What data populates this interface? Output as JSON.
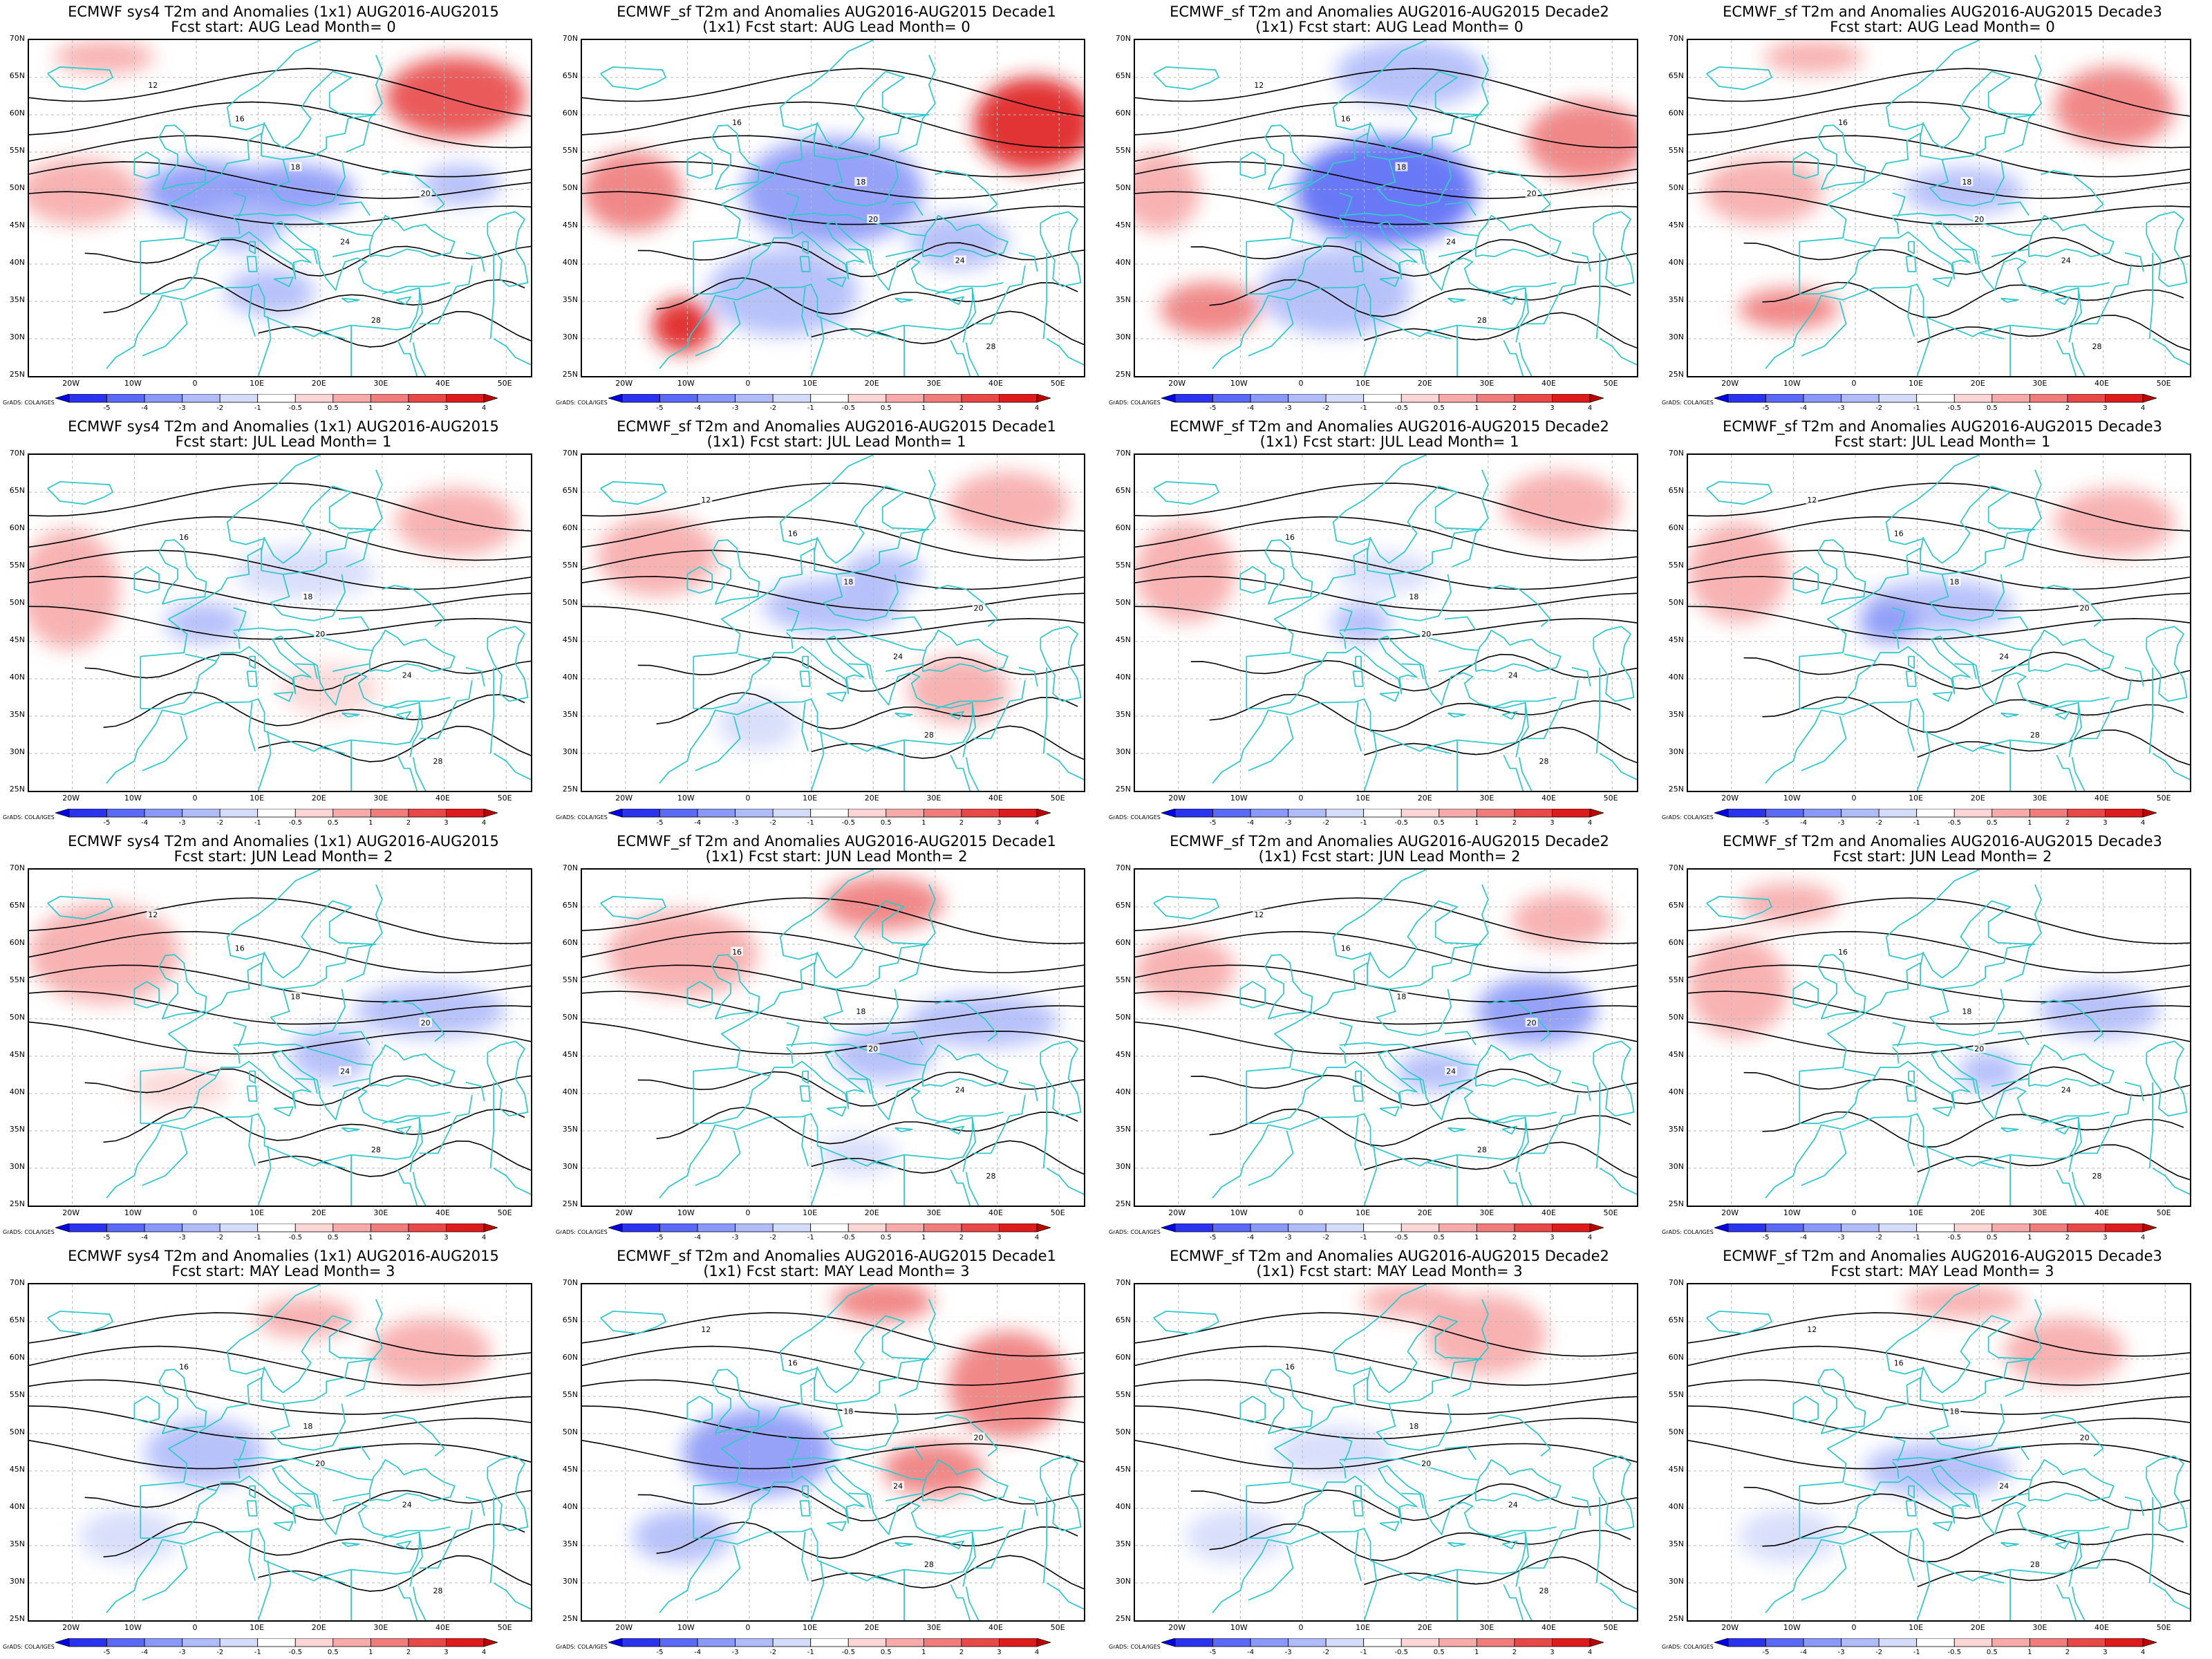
{
  "panel_grid": [
    [
      {
        "title": "ECMWF sys4 T2m and Anomalies (1x1) AUG2016-AUG2015",
        "subtitle": "Fcst start: AUG  Lead Month= 0",
        "blobs": [
          [
            0.35,
            0.45,
            0.12,
            0.09,
            -2.0
          ],
          [
            0.52,
            0.45,
            0.13,
            0.08,
            -2.0
          ],
          [
            0.43,
            0.55,
            0.08,
            0.08,
            -1.0
          ],
          [
            0.48,
            0.75,
            0.09,
            0.07,
            -1.0
          ],
          [
            0.85,
            0.17,
            0.14,
            0.12,
            3.0
          ],
          [
            0.86,
            0.43,
            0.08,
            0.06,
            -1.0
          ],
          [
            0.1,
            0.45,
            0.12,
            0.1,
            1.0
          ],
          [
            0.15,
            0.05,
            0.1,
            0.05,
            1.0
          ]
        ]
      },
      {
        "title": "ECMWF_sf T2m and Anomalies AUG2016-AUG2015 Decade1",
        "subtitle": "(1x1) Fcst start: AUG  Lead Month= 0",
        "blobs": [
          [
            0.5,
            0.45,
            0.18,
            0.16,
            -2.5
          ],
          [
            0.4,
            0.75,
            0.15,
            0.13,
            -1.0
          ],
          [
            0.75,
            0.6,
            0.1,
            0.08,
            -1.0
          ],
          [
            0.9,
            0.25,
            0.12,
            0.14,
            4.0
          ],
          [
            0.1,
            0.45,
            0.1,
            0.12,
            2.0
          ],
          [
            0.2,
            0.85,
            0.06,
            0.08,
            4.0
          ]
        ]
      },
      {
        "title": "ECMWF_sf T2m and Anomalies AUG2016-AUG2015 Decade2",
        "subtitle": "(1x1) Fcst start: AUG  Lead Month= 0",
        "blobs": [
          [
            0.5,
            0.45,
            0.18,
            0.16,
            -3.0
          ],
          [
            0.4,
            0.75,
            0.15,
            0.13,
            -1.0
          ],
          [
            0.55,
            0.1,
            0.15,
            0.1,
            -1.0
          ],
          [
            0.15,
            0.8,
            0.1,
            0.08,
            2.0
          ],
          [
            0.9,
            0.3,
            0.12,
            0.12,
            2.0
          ],
          [
            0.05,
            0.45,
            0.08,
            0.12,
            1.0
          ]
        ]
      },
      {
        "title": "ECMWF_sf T2m and Anomalies AUG2016-AUG2015 Decade3",
        "subtitle": "Fcst start: AUG  Lead Month= 0",
        "blobs": [
          [
            0.15,
            0.45,
            0.12,
            0.1,
            1.0
          ],
          [
            0.85,
            0.2,
            0.12,
            0.12,
            2.0
          ],
          [
            0.2,
            0.8,
            0.1,
            0.06,
            2.0
          ],
          [
            0.55,
            0.45,
            0.12,
            0.07,
            -1.0
          ],
          [
            0.25,
            0.05,
            0.1,
            0.05,
            1.0
          ]
        ]
      }
    ],
    [
      {
        "title": "ECMWF sys4 T2m and Anomalies (1x1) AUG2016-AUG2015",
        "subtitle": "Fcst start: JUL  Lead Month= 1",
        "blobs": [
          [
            0.08,
            0.4,
            0.1,
            0.18,
            1.0
          ],
          [
            0.55,
            0.35,
            0.14,
            0.08,
            -0.5
          ],
          [
            0.35,
            0.5,
            0.08,
            0.06,
            -1.0
          ],
          [
            0.6,
            0.7,
            0.1,
            0.08,
            0.5
          ],
          [
            0.85,
            0.2,
            0.12,
            0.1,
            1.0
          ]
        ]
      },
      {
        "title": "ECMWF_sf T2m and Anomalies AUG2016-AUG2015 Decade1",
        "subtitle": "(1x1) Fcst start: JUL  Lead Month= 1",
        "blobs": [
          [
            0.15,
            0.3,
            0.12,
            0.12,
            1.0
          ],
          [
            0.5,
            0.45,
            0.14,
            0.08,
            -1.0
          ],
          [
            0.6,
            0.35,
            0.08,
            0.06,
            -1.0
          ],
          [
            0.75,
            0.7,
            0.1,
            0.1,
            1.0
          ],
          [
            0.85,
            0.15,
            0.12,
            0.1,
            1.0
          ],
          [
            0.35,
            0.8,
            0.08,
            0.08,
            -0.5
          ]
        ]
      },
      {
        "title": "ECMWF_sf T2m and Anomalies AUG2016-AUG2015 Decade2",
        "subtitle": "(1x1) Fcst start: JUL  Lead Month= 1",
        "blobs": [
          [
            0.1,
            0.35,
            0.1,
            0.15,
            1.0
          ],
          [
            0.5,
            0.35,
            0.1,
            0.06,
            -0.5
          ],
          [
            0.45,
            0.5,
            0.06,
            0.06,
            -1.0
          ],
          [
            0.85,
            0.15,
            0.12,
            0.1,
            1.0
          ]
        ]
      },
      {
        "title": "ECMWF_sf T2m and Anomalies AUG2016-AUG2015 Decade3",
        "subtitle": "Fcst start: JUL  Lead Month= 1",
        "blobs": [
          [
            0.1,
            0.35,
            0.1,
            0.15,
            1.0
          ],
          [
            0.5,
            0.45,
            0.15,
            0.08,
            -1.0
          ],
          [
            0.4,
            0.5,
            0.06,
            0.06,
            -2.0
          ],
          [
            0.85,
            0.2,
            0.12,
            0.1,
            1.0
          ]
        ]
      }
    ],
    [
      {
        "title": "ECMWF sys4 T2m and Anomalies (1x1) AUG2016-AUG2015",
        "subtitle": "Fcst start: JUN  Lead Month= 2",
        "blobs": [
          [
            0.15,
            0.25,
            0.15,
            0.15,
            1.0
          ],
          [
            0.8,
            0.42,
            0.15,
            0.08,
            -1.0
          ],
          [
            0.6,
            0.55,
            0.08,
            0.08,
            -1.0
          ],
          [
            0.3,
            0.65,
            0.1,
            0.06,
            0.5
          ]
        ]
      },
      {
        "title": "ECMWF_sf T2m and Anomalies AUG2016-AUG2015 Decade1",
        "subtitle": "(1x1) Fcst start: JUN  Lead Month= 2",
        "blobs": [
          [
            0.2,
            0.25,
            0.15,
            0.13,
            1.0
          ],
          [
            0.6,
            0.1,
            0.12,
            0.08,
            2.0
          ],
          [
            0.8,
            0.45,
            0.15,
            0.08,
            -1.0
          ],
          [
            0.6,
            0.55,
            0.1,
            0.08,
            -1.0
          ],
          [
            0.55,
            0.85,
            0.08,
            0.06,
            -0.5
          ]
        ]
      },
      {
        "title": "ECMWF_sf T2m and Anomalies AUG2016-AUG2015 Decade2",
        "subtitle": "(1x1) Fcst start: JUN  Lead Month= 2",
        "blobs": [
          [
            0.1,
            0.3,
            0.1,
            0.1,
            1.0
          ],
          [
            0.8,
            0.42,
            0.12,
            0.1,
            -2.0
          ],
          [
            0.6,
            0.6,
            0.08,
            0.06,
            -1.0
          ],
          [
            0.85,
            0.15,
            0.1,
            0.08,
            1.0
          ]
        ]
      },
      {
        "title": "ECMWF_sf T2m and Anomalies AUG2016-AUG2015 Decade3",
        "subtitle": "Fcst start: JUN  Lead Month= 2",
        "blobs": [
          [
            0.1,
            0.35,
            0.1,
            0.15,
            1.0
          ],
          [
            0.82,
            0.42,
            0.12,
            0.08,
            -1.5
          ],
          [
            0.6,
            0.6,
            0.06,
            0.06,
            -1.0
          ],
          [
            0.2,
            0.1,
            0.1,
            0.06,
            1.0
          ]
        ]
      }
    ],
    [
      {
        "title": "ECMWF sys4 T2m and Anomalies (1x1) AUG2016-AUG2015",
        "subtitle": "Fcst start: MAY  Lead Month= 3",
        "blobs": [
          [
            0.35,
            0.5,
            0.12,
            0.1,
            -1.0
          ],
          [
            0.2,
            0.75,
            0.1,
            0.08,
            -0.5
          ],
          [
            0.8,
            0.2,
            0.12,
            0.1,
            1.0
          ],
          [
            0.55,
            0.1,
            0.1,
            0.06,
            1.0
          ]
        ]
      },
      {
        "title": "ECMWF_sf T2m and Anomalies AUG2016-AUG2015 Decade1",
        "subtitle": "(1x1) Fcst start: MAY  Lead Month= 3",
        "blobs": [
          [
            0.35,
            0.5,
            0.15,
            0.13,
            -2.0
          ],
          [
            0.2,
            0.75,
            0.1,
            0.08,
            -1.0
          ],
          [
            0.85,
            0.3,
            0.12,
            0.16,
            2.0
          ],
          [
            0.7,
            0.55,
            0.1,
            0.08,
            2.0
          ],
          [
            0.6,
            0.05,
            0.1,
            0.06,
            2.0
          ]
        ]
      },
      {
        "title": "ECMWF_sf T2m and Anomalies AUG2016-AUG2015 Decade2",
        "subtitle": "(1x1) Fcst start: MAY  Lead Month= 3",
        "blobs": [
          [
            0.4,
            0.5,
            0.12,
            0.08,
            -0.5
          ],
          [
            0.2,
            0.75,
            0.1,
            0.08,
            -0.5
          ],
          [
            0.7,
            0.15,
            0.12,
            0.12,
            1.0
          ],
          [
            0.55,
            0.05,
            0.1,
            0.05,
            1.0
          ]
        ]
      },
      {
        "title": "ECMWF_sf T2m and Anomalies AUG2016-AUG2015 Decade3",
        "subtitle": "Fcst start: MAY  Lead Month= 3",
        "blobs": [
          [
            0.5,
            0.55,
            0.15,
            0.08,
            -1.0
          ],
          [
            0.2,
            0.75,
            0.1,
            0.08,
            -0.5
          ],
          [
            0.75,
            0.2,
            0.12,
            0.1,
            1.0
          ],
          [
            0.55,
            0.05,
            0.12,
            0.05,
            1.0
          ]
        ]
      }
    ]
  ],
  "lat_labels": [
    "70N",
    "65N",
    "60N",
    "55N",
    "50N",
    "45N",
    "40N",
    "35N",
    "30N",
    "25N"
  ],
  "lon_labels": [
    "20W",
    "10W",
    "0",
    "10E",
    "20E",
    "30E",
    "40E",
    "50E"
  ],
  "colorbar_labels": [
    "-5",
    "-4",
    "-3",
    "-2",
    "-1",
    "-0.5",
    "0.5",
    "1",
    "2",
    "3",
    "4",
    "5"
  ],
  "colorbar_colors": [
    "#0000ee",
    "#2a34f0",
    "#5a6af4",
    "#8a98f7",
    "#b0bbf9",
    "#d5dbfb",
    "#ffffff",
    "#fcd6d6",
    "#f7aaaa",
    "#f07c7c",
    "#e84848",
    "#df1c1c",
    "#c00000"
  ],
  "contour_labels": [
    "12",
    "16",
    "18",
    "20",
    "24",
    "28"
  ],
  "credit": "GrADS: COLA/IGES",
  "colors": {
    "land_outline": "#33c9cc",
    "contour": "#000000",
    "grid": "#b8b8b8"
  }
}
